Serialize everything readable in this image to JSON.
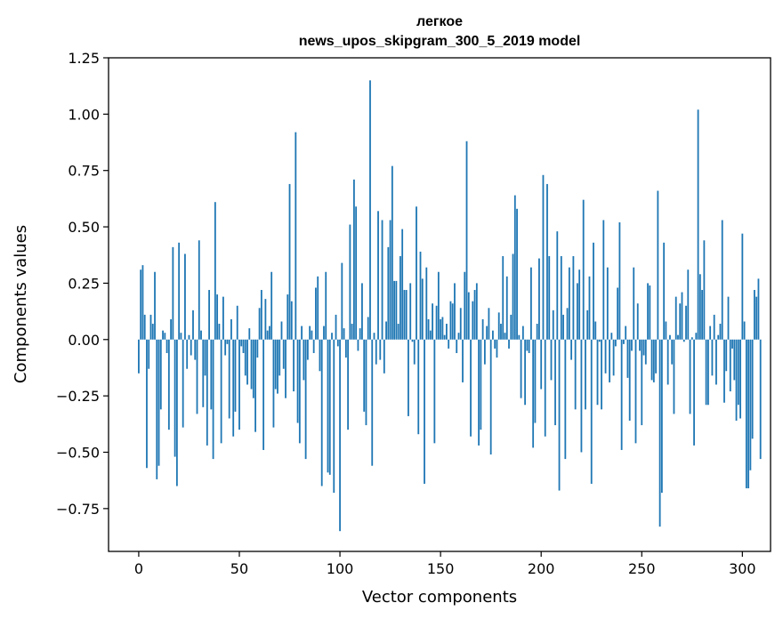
{
  "chart_data": {
    "type": "bar",
    "title": [
      "легкое",
      "news_upos_skipgram_300_5_2019 model"
    ],
    "xlabel": "Vector components",
    "ylabel": "Components values",
    "xlim": [
      -15,
      314
    ],
    "ylim": [
      -0.94,
      1.25
    ],
    "xticks": [
      0,
      50,
      100,
      150,
      200,
      250,
      300
    ],
    "xtick_labels": [
      "0",
      "50",
      "100",
      "150",
      "200",
      "250",
      "300"
    ],
    "yticks": [
      1.25,
      1.0,
      0.75,
      0.5,
      0.25,
      0.0,
      -0.25,
      -0.5,
      -0.75
    ],
    "ytick_labels": [
      "1.25",
      "1.00",
      "0.75",
      "0.50",
      "0.25",
      "0.00",
      "−0.25",
      "−0.50",
      "−0.75"
    ],
    "grid": false,
    "bar_color": "#1f77b4",
    "series": [
      {
        "values": [
          -0.15,
          0.31,
          0.33,
          0.11,
          -0.57,
          -0.13,
          0.11,
          0.07,
          0.3,
          -0.62,
          -0.56,
          -0.31,
          0.04,
          0.03,
          -0.06,
          -0.4,
          0.09,
          0.41,
          -0.52,
          -0.65,
          0.43,
          0.03,
          -0.39,
          0.38,
          -0.13,
          0.02,
          -0.07,
          0.13,
          -0.09,
          -0.33,
          0.44,
          0.04,
          -0.3,
          -0.16,
          -0.47,
          0.22,
          -0.31,
          -0.53,
          0.61,
          0.2,
          0.07,
          -0.46,
          0.19,
          -0.07,
          -0.02,
          -0.35,
          0.09,
          -0.43,
          -0.32,
          0.15,
          -0.4,
          -0.03,
          -0.06,
          -0.16,
          -0.2,
          0.05,
          -0.22,
          -0.26,
          -0.41,
          -0.08,
          0.14,
          0.22,
          -0.49,
          0.18,
          0.04,
          0.06,
          0.3,
          -0.39,
          -0.22,
          -0.24,
          -0.16,
          0.08,
          -0.13,
          -0.26,
          0.2,
          0.69,
          0.17,
          -0.23,
          0.92,
          -0.37,
          -0.46,
          0.06,
          -0.18,
          -0.53,
          -0.09,
          0.06,
          0.04,
          -0.06,
          0.23,
          0.28,
          -0.14,
          -0.65,
          0.06,
          0.3,
          -0.59,
          -0.6,
          0.03,
          -0.68,
          0.11,
          -0.03,
          -0.85,
          0.34,
          0.05,
          -0.08,
          -0.4,
          0.51,
          0.07,
          0.71,
          0.59,
          -0.05,
          0.05,
          0.25,
          -0.32,
          -0.38,
          0.1,
          1.15,
          -0.56,
          0.03,
          -0.11,
          0.57,
          -0.09,
          0.53,
          -0.15,
          0.08,
          0.41,
          0.53,
          0.77,
          0.26,
          0.26,
          0.07,
          0.37,
          0.49,
          0.22,
          0.22,
          -0.34,
          0.25,
          -0.01,
          -0.11,
          0.59,
          -0.42,
          0.39,
          0.27,
          -0.64,
          0.32,
          0.09,
          0.04,
          0.16,
          -0.46,
          0.15,
          0.3,
          0.09,
          0.1,
          0.02,
          0.07,
          -0.04,
          0.17,
          0.16,
          0.25,
          -0.06,
          0.03,
          0.14,
          -0.19,
          0.3,
          0.88,
          0.21,
          -0.43,
          0.17,
          0.22,
          0.25,
          -0.47,
          -0.4,
          0.09,
          -0.11,
          0.06,
          0.14,
          -0.51,
          0.04,
          -0.04,
          -0.08,
          0.12,
          0.07,
          0.37,
          0.03,
          0.28,
          -0.04,
          0.11,
          0.38,
          0.64,
          0.58,
          0.02,
          -0.26,
          0.06,
          -0.29,
          -0.05,
          -0.06,
          0.32,
          -0.48,
          -0.37,
          0.07,
          0.36,
          -0.22,
          0.73,
          -0.43,
          0.69,
          0.37,
          -0.18,
          0.13,
          -0.38,
          0.48,
          -0.67,
          0.37,
          0.11,
          -0.53,
          0.14,
          0.32,
          -0.09,
          0.37,
          -0.31,
          0.25,
          0.31,
          -0.5,
          0.62,
          -0.31,
          0.13,
          0.28,
          -0.64,
          0.43,
          0.08,
          -0.29,
          -0.01,
          -0.31,
          0.53,
          -0.15,
          0.32,
          -0.19,
          0.03,
          -0.16,
          -0.03,
          0.23,
          0.52,
          -0.49,
          -0.02,
          0.06,
          -0.17,
          -0.36,
          -0.05,
          0.32,
          -0.46,
          0.16,
          -0.05,
          -0.38,
          -0.07,
          -0.11,
          0.25,
          0.24,
          -0.18,
          -0.19,
          -0.15,
          0.66,
          -0.83,
          -0.68,
          0.43,
          0.08,
          -0.2,
          0.02,
          -0.11,
          -0.33,
          0.19,
          0.02,
          0.16,
          0.21,
          -0.01,
          0.15,
          0.31,
          -0.33,
          0.01,
          -0.47,
          0.03,
          1.02,
          0.29,
          0.22,
          0.44,
          -0.29,
          -0.29,
          0.06,
          -0.16,
          0.11,
          -0.2,
          0.02,
          0.07,
          0.53,
          -0.28,
          -0.14,
          0.19,
          -0.23,
          -0.04,
          -0.18,
          -0.36,
          -0.29,
          -0.35,
          0.47,
          0.08,
          -0.66,
          -0.66,
          -0.58,
          -0.44,
          0.22,
          0.19,
          0.27,
          -0.53
        ]
      }
    ]
  }
}
